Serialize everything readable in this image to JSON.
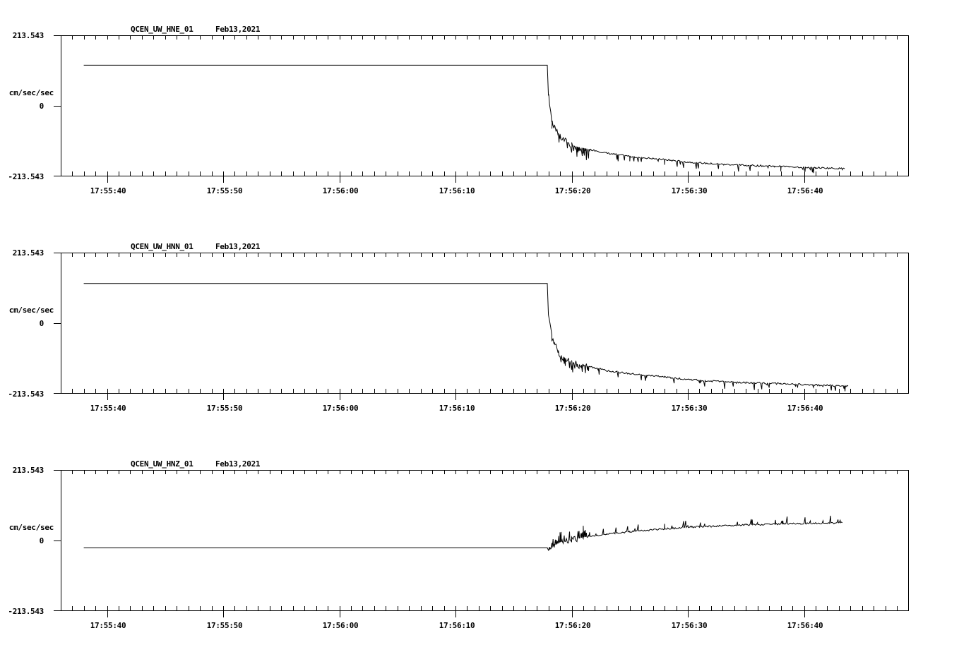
{
  "chart_data": [
    {
      "type": "line",
      "title": "QCEN_UW_HNE_01",
      "date": "Feb13,2021",
      "ylabel": "cm/sec/sec",
      "ylim": [
        -213.543,
        213.543
      ],
      "yticks": [
        "213.543",
        "0",
        "-213.543"
      ],
      "xlabel": "",
      "xticks": [
        "17:55:40",
        "17:55:50",
        "17:56:00",
        "17:56:10",
        "17:56:20",
        "17:56:30",
        "17:56:40"
      ],
      "grid": false,
      "series": [
        {
          "name": "HNE",
          "x_seconds_from_17_55_40": [
            -2,
            0,
            10,
            20,
            30,
            37.9,
            38.0,
            38.3,
            39,
            40,
            41,
            42,
            43,
            45,
            48,
            50,
            52,
            55,
            58,
            61,
            63.5
          ],
          "values": [
            123,
            123,
            123,
            123,
            123,
            123,
            35,
            -45,
            -95,
            -120,
            -128,
            -135,
            -143,
            -153,
            -163,
            -170,
            -175,
            -180,
            -183,
            -187,
            -190
          ]
        }
      ]
    },
    {
      "type": "line",
      "title": "QCEN_UW_HNN_01",
      "date": "Feb13,2021",
      "ylabel": "cm/sec/sec",
      "ylim": [
        -213.543,
        213.543
      ],
      "yticks": [
        "213.543",
        "0",
        "-213.543"
      ],
      "xlabel": "",
      "xticks": [
        "17:55:40",
        "17:55:50",
        "17:56:00",
        "17:56:10",
        "17:56:20",
        "17:56:30",
        "17:56:40"
      ],
      "grid": false,
      "series": [
        {
          "name": "HNN",
          "x_seconds_from_17_55_40": [
            -2,
            0,
            10,
            20,
            30,
            37.9,
            38.0,
            38.3,
            39,
            40,
            41,
            42,
            43,
            45,
            48,
            50,
            52,
            55,
            58,
            61,
            63.8
          ],
          "values": [
            120,
            120,
            120,
            120,
            120,
            120,
            35,
            -45,
            -95,
            -120,
            -128,
            -135,
            -143,
            -153,
            -163,
            -170,
            -175,
            -180,
            -183,
            -187,
            -190
          ]
        }
      ]
    },
    {
      "type": "line",
      "title": "QCEN_UW_HNZ_01",
      "date": "Feb13,2021",
      "ylabel": "cm/sec/sec",
      "ylim": [
        -213.543,
        213.543
      ],
      "yticks": [
        "213.543",
        "0",
        "-213.543"
      ],
      "xlabel": "",
      "xticks": [
        "17:55:40",
        "17:55:50",
        "17:56:00",
        "17:56:10",
        "17:56:20",
        "17:56:30",
        "17:56:40"
      ],
      "grid": false,
      "series": [
        {
          "name": "HNZ",
          "x_seconds_from_17_55_40": [
            -2,
            0,
            10,
            20,
            30,
            37.9,
            38.0,
            38.5,
            39,
            40,
            41,
            42,
            43,
            45,
            48,
            50,
            52,
            55,
            58,
            61,
            63.3
          ],
          "values": [
            -22,
            -22,
            -22,
            -22,
            -22,
            -22,
            -30,
            -15,
            -5,
            3,
            10,
            15,
            20,
            27,
            35,
            40,
            43,
            47,
            50,
            52,
            54
          ]
        }
      ]
    }
  ],
  "panels": [
    {
      "title": "QCEN_UW_HNE_01",
      "date": "Feb13,2021",
      "y_top": "213.543",
      "y_zero": "0",
      "y_bottom": "-213.543",
      "y_unit": "cm/sec/sec",
      "xticks": [
        "17:55:40",
        "17:55:50",
        "17:56:00",
        "17:56:10",
        "17:56:20",
        "17:56:30",
        "17:56:40"
      ]
    },
    {
      "title": "QCEN_UW_HNN_01",
      "date": "Feb13,2021",
      "y_top": "213.543",
      "y_zero": "0",
      "y_bottom": "-213.543",
      "y_unit": "cm/sec/sec",
      "xticks": [
        "17:55:40",
        "17:55:50",
        "17:56:00",
        "17:56:10",
        "17:56:20",
        "17:56:30",
        "17:56:40"
      ]
    },
    {
      "title": "QCEN_UW_HNZ_01",
      "date": "Feb13,2021",
      "y_top": "213.543",
      "y_zero": "0",
      "y_bottom": "-213.543",
      "y_unit": "cm/sec/sec",
      "xticks": [
        "17:55:40",
        "17:55:50",
        "17:56:00",
        "17:56:10",
        "17:56:20",
        "17:56:30",
        "17:56:40"
      ]
    }
  ],
  "colors": {
    "trace": "#000000",
    "axis": "#000000",
    "background": "#ffffff"
  }
}
